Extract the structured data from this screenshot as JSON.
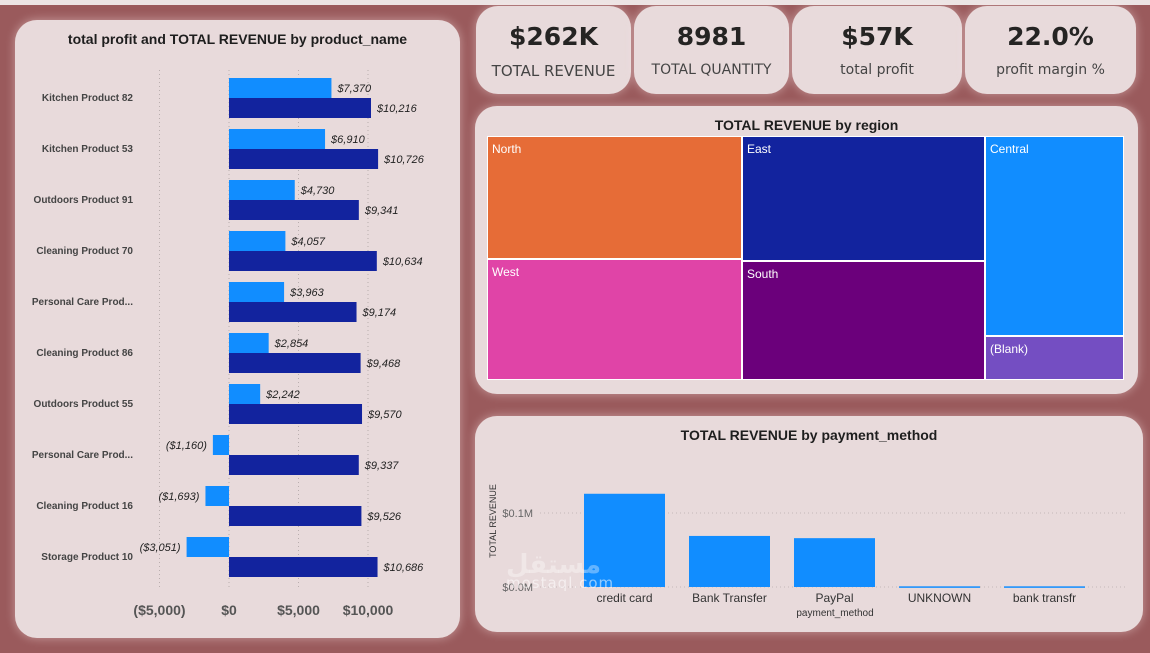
{
  "bar_chart": {
    "title": "total profit and TOTAL REVENUE by product_name",
    "profit_color": "#118dff",
    "revenue_color": "#12239e"
  },
  "kpis": [
    {
      "value": "$262K",
      "label": "TOTAL REVENUE"
    },
    {
      "value": "8981",
      "label": "TOTAL QUANTITY"
    },
    {
      "value": "$57K",
      "label": "total profit"
    },
    {
      "value": "22.0%",
      "label": "profit margin %"
    }
  ],
  "treemap": {
    "title": "TOTAL REVENUE by region",
    "cells": [
      {
        "label": "North",
        "color": "#e66c37"
      },
      {
        "label": "East",
        "color": "#12239e"
      },
      {
        "label": "Central",
        "color": "#118dff"
      },
      {
        "label": "West",
        "color": "#e044a7"
      },
      {
        "label": "South",
        "color": "#6b007b"
      },
      {
        "label": "(Blank)",
        "color": "#744ec2"
      }
    ]
  },
  "column_chart": {
    "title": "TOTAL REVENUE by payment_method",
    "color": "#118dff"
  },
  "watermark": {
    "text": "mostaql.com",
    "logo": "مستقل"
  },
  "chart_data": [
    {
      "type": "bar",
      "orientation": "horizontal",
      "title": "total profit and TOTAL REVENUE by product_name",
      "categories": [
        "Kitchen Product 82",
        "Kitchen Product 53",
        "Outdoors Product 91",
        "Cleaning Product 70",
        "Personal Care Prod...",
        "Cleaning Product 86",
        "Outdoors Product 55",
        "Personal Care Prod...",
        "Cleaning Product 16",
        "Storage Product 10"
      ],
      "series": [
        {
          "values": [
            7370,
            6910,
            4730,
            4057,
            3963,
            2854,
            2242,
            -1160,
            -1693,
            -3051
          ],
          "labels": [
            "$7,370",
            "$6,910",
            "$4,730",
            "$4,057",
            "$3,963",
            "$2,854",
            "$2,242",
            "($1,160)",
            "($1,693)",
            "($3,051)"
          ]
        },
        {
          "values": [
            10216,
            10726,
            9341,
            10634,
            9174,
            9468,
            9570,
            9337,
            9526,
            10686
          ],
          "labels": [
            "$10,216",
            "$10,726",
            "$9,341",
            "$10,634",
            "$9,174",
            "$9,468",
            "$9,570",
            "$9,337",
            "$9,526",
            "$10,686"
          ]
        }
      ],
      "xlim": [
        -5000,
        12000
      ],
      "xticks": [
        -5000,
        0,
        5000,
        10000
      ],
      "xtick_labels": [
        "($5,000)",
        "$0",
        "$5,000",
        "$10,000"
      ],
      "grid": true
    },
    {
      "type": "bar",
      "title": "TOTAL REVENUE by payment_method",
      "categories": [
        "credit card",
        "Bank Transfer",
        "PayPal",
        "UNKNOWN",
        "bank transfr"
      ],
      "values": [
        126000,
        69000,
        66000,
        900,
        900
      ],
      "xlabel": "payment_method",
      "ylabel": "TOTAL REVENUE",
      "ylim": [
        0,
        150000
      ],
      "yticks": [
        0,
        100000
      ],
      "ytick_labels": [
        "$0.0M",
        "$0.1M"
      ]
    }
  ]
}
